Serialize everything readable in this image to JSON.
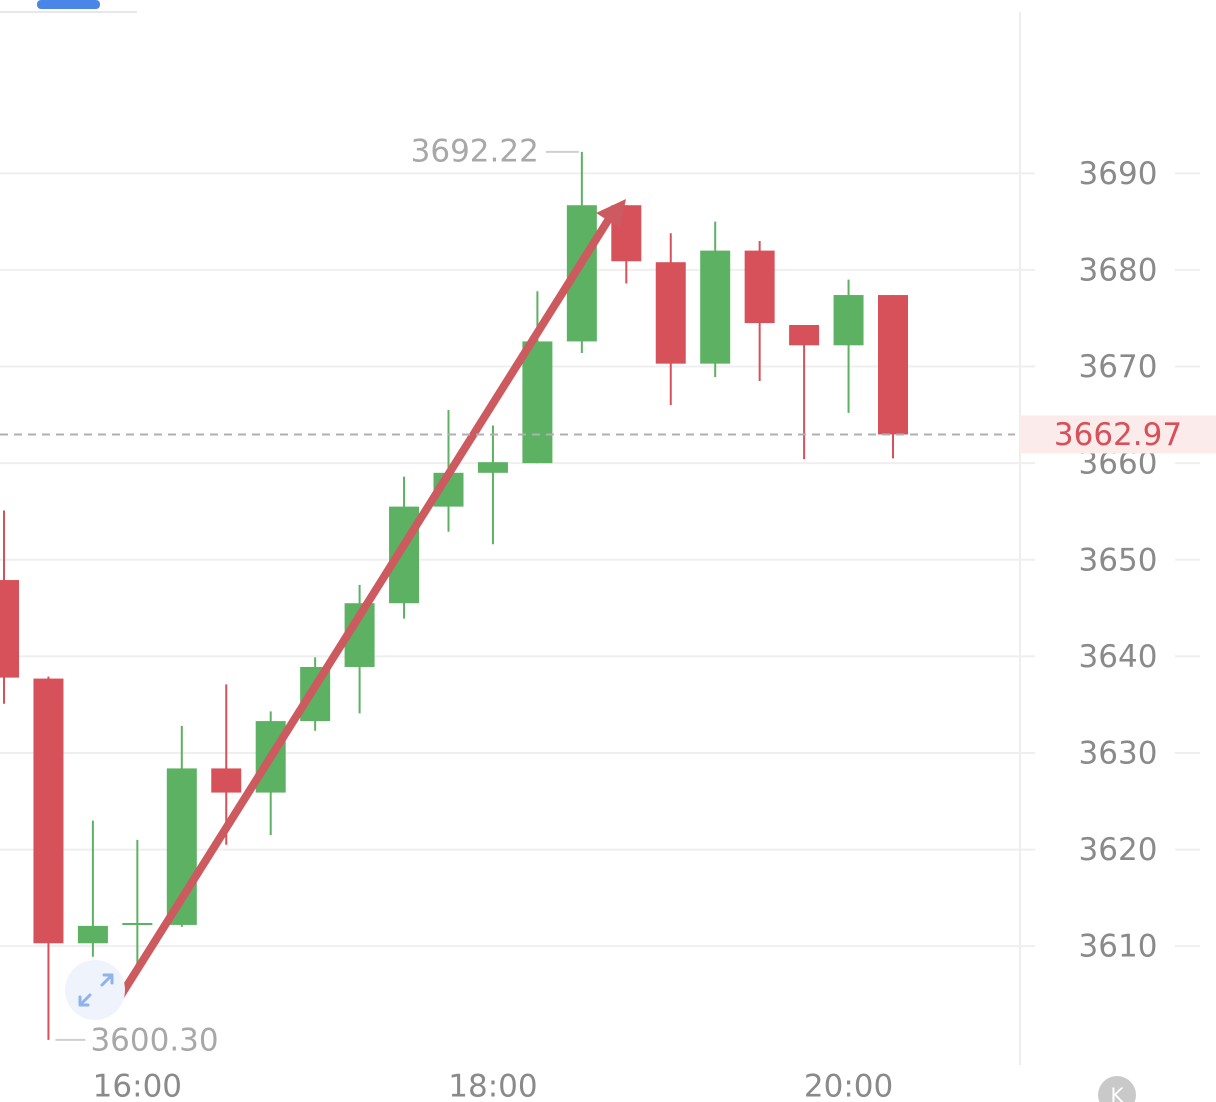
{
  "chart_data": {
    "type": "candlestick",
    "categories": [
      null,
      null,
      null,
      "16:00",
      null,
      null,
      null,
      null,
      null,
      null,
      null,
      "18:00",
      null,
      null,
      null,
      null,
      null,
      null,
      null,
      "20:00",
      null
    ],
    "open": [
      3647.9,
      3637.7,
      3610.3,
      3612.2,
      3612.2,
      3628.4,
      3625.9,
      3633.3,
      3638.9,
      3645.5,
      3655.5,
      3659.0,
      3660.0,
      3672.6,
      3686.7,
      3680.8,
      3670.3,
      3682.0,
      3674.3,
      3672.2,
      3677.4
    ],
    "high": [
      3655.1,
      3637.9,
      3623.0,
      3621.0,
      3632.8,
      3637.1,
      3634.3,
      3639.9,
      3647.4,
      3658.6,
      3665.5,
      3663.9,
      3677.8,
      3692.22,
      3686.7,
      3683.8,
      3685.0,
      3683.0,
      3674.3,
      3679.0,
      3677.4
    ],
    "low": [
      3635.1,
      3600.3,
      3608.9,
      3608.0,
      3612.0,
      3620.5,
      3621.5,
      3632.3,
      3634.1,
      3643.9,
      3652.9,
      3651.6,
      3660.0,
      3671.4,
      3678.6,
      3666.0,
      3668.9,
      3668.5,
      3660.4,
      3665.2,
      3660.5
    ],
    "close": [
      3637.8,
      3610.3,
      3612.1,
      3612.4,
      3628.4,
      3625.9,
      3633.3,
      3638.9,
      3645.5,
      3655.5,
      3659.0,
      3660.1,
      3672.6,
      3686.7,
      3680.9,
      3670.3,
      3682.0,
      3674.5,
      3672.2,
      3677.4,
      3662.97
    ],
    "up_color": "#5cb163",
    "down_color": "#d6515a",
    "ylim": [
      3597.7,
      3706.7
    ],
    "yticks": [
      3610,
      3620,
      3630,
      3640,
      3650,
      3660,
      3670,
      3680,
      3690
    ],
    "grid": true,
    "max_label": {
      "value": 3692.22,
      "label": "3692.22"
    },
    "min_label": {
      "value": 3600.3,
      "label": "3600.30"
    },
    "last_price": {
      "value": 3662.97,
      "label": "3662.97"
    }
  }
}
